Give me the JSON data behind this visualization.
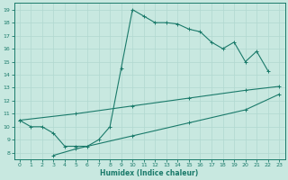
{
  "title": "",
  "xlabel": "Humidex (Indice chaleur)",
  "bg_color": "#c8e8e0",
  "line_color": "#1a7a6a",
  "grid_color": "#b0d8d0",
  "xlim": [
    -0.5,
    23.5
  ],
  "ylim": [
    7.5,
    19.5
  ],
  "xticks": [
    0,
    1,
    2,
    3,
    4,
    5,
    6,
    7,
    8,
    9,
    10,
    11,
    12,
    13,
    14,
    15,
    16,
    17,
    18,
    19,
    20,
    21,
    22,
    23
  ],
  "yticks": [
    8,
    9,
    10,
    11,
    12,
    13,
    14,
    15,
    16,
    17,
    18,
    19
  ],
  "line1_x": [
    0,
    1,
    2,
    3,
    4,
    5,
    6,
    7,
    8,
    9,
    10,
    11,
    12,
    13,
    14,
    15,
    16,
    17,
    18,
    19,
    20,
    21,
    22
  ],
  "line1_y": [
    10.5,
    10.0,
    10.0,
    9.5,
    8.5,
    8.5,
    8.5,
    9.0,
    10.0,
    14.5,
    19.0,
    18.5,
    18.0,
    18.0,
    17.9,
    17.5,
    17.3,
    16.5,
    16.0,
    16.5,
    15.0,
    15.8,
    14.3
  ],
  "line2_x": [
    0,
    5,
    10,
    15,
    20,
    23
  ],
  "line2_y": [
    10.5,
    11.0,
    11.6,
    12.2,
    12.8,
    13.1
  ],
  "line3_x": [
    3,
    5,
    10,
    15,
    20,
    23
  ],
  "line3_y": [
    7.8,
    8.3,
    9.3,
    10.3,
    11.3,
    12.5
  ]
}
